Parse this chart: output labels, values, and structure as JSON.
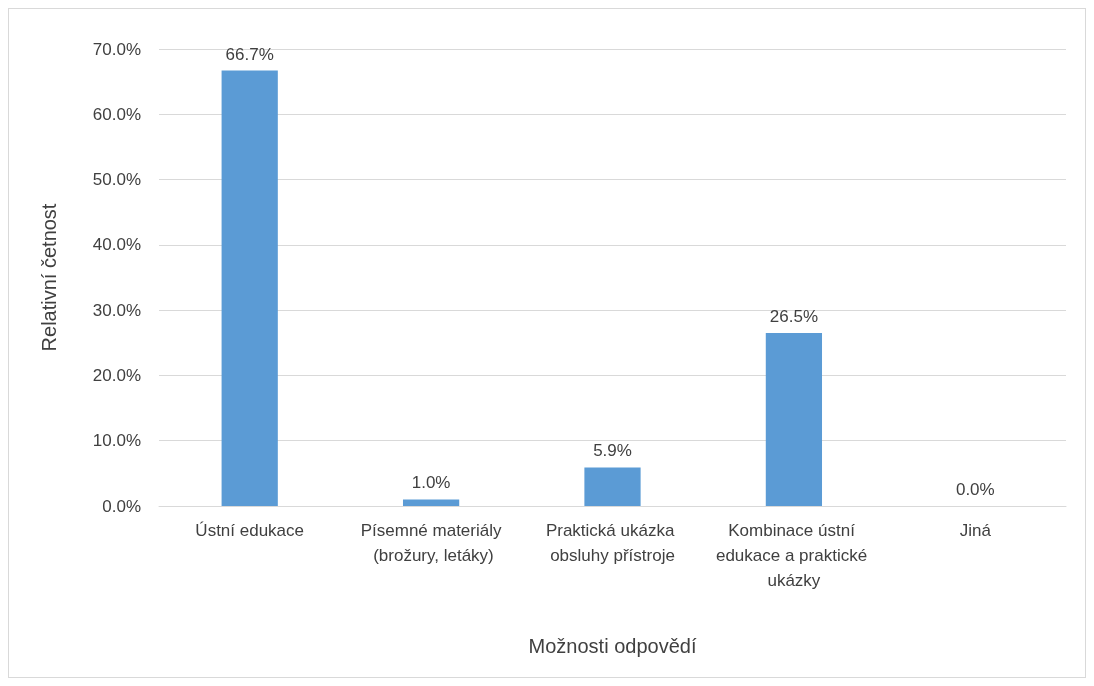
{
  "chart_data": {
    "type": "bar",
    "xlabel": "Možnosti odpovědí",
    "ylabel": "Relativní četnost",
    "categories": [
      "Ústní edukace",
      "Písemné materiály (brožury, letáky)",
      "Praktická ukázka obsluhy přístroje",
      "Kombinace ústní edukace a praktické ukázky",
      "Jiná"
    ],
    "values": [
      66.7,
      1.0,
      5.9,
      26.5,
      0.0
    ],
    "value_labels": [
      "66.7%",
      "1.0%",
      "5.9%",
      "26.5%",
      "0.0%"
    ],
    "color": "#5b9bd5",
    "ylim": [
      0,
      70
    ],
    "yticks": [
      {
        "value": 0,
        "label": "0.0%"
      },
      {
        "value": 10,
        "label": "10.0%"
      },
      {
        "value": 20,
        "label": "20.0%"
      },
      {
        "value": 30,
        "label": "30.0%"
      },
      {
        "value": 40,
        "label": "40.0%"
      },
      {
        "value": 50,
        "label": "50.0%"
      },
      {
        "value": 60,
        "label": "60.0%"
      },
      {
        "value": 70,
        "label": "70.0%"
      }
    ],
    "grid": "y"
  }
}
